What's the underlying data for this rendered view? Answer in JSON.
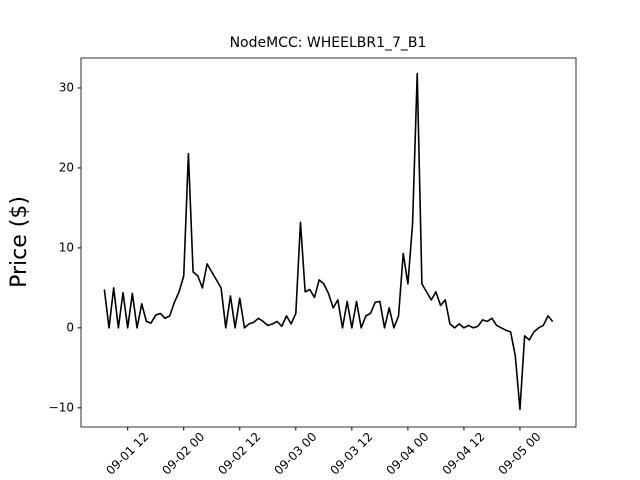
{
  "chart_data": {
    "type": "line",
    "title": "NodeMCC: WHEELBR1_7_B1",
    "y_label": "Price ($)",
    "x": [
      "09-01 07",
      "09-01 08",
      "09-01 09",
      "09-01 10",
      "09-01 11",
      "09-01 12",
      "09-01 13",
      "09-01 14",
      "09-01 15",
      "09-01 16",
      "09-01 17",
      "09-01 18",
      "09-01 19",
      "09-01 20",
      "09-01 21",
      "09-01 22",
      "09-01 23",
      "09-02 00",
      "09-02 01",
      "09-02 02",
      "09-02 03",
      "09-02 04",
      "09-02 05",
      "09-02 06",
      "09-02 07",
      "09-02 08",
      "09-02 09",
      "09-02 10",
      "09-02 11",
      "09-02 12",
      "09-02 13",
      "09-02 14",
      "09-02 15",
      "09-02 16",
      "09-02 17",
      "09-02 18",
      "09-02 19",
      "09-02 20",
      "09-02 21",
      "09-02 22",
      "09-02 23",
      "09-03 00",
      "09-03 01",
      "09-03 02",
      "09-03 03",
      "09-03 04",
      "09-03 05",
      "09-03 06",
      "09-03 07",
      "09-03 08",
      "09-03 09",
      "09-03 10",
      "09-03 11",
      "09-03 12",
      "09-03 13",
      "09-03 14",
      "09-03 15",
      "09-03 16",
      "09-03 17",
      "09-03 18",
      "09-03 19",
      "09-03 20",
      "09-03 21",
      "09-03 22",
      "09-03 23",
      "09-04 00",
      "09-04 01",
      "09-04 02",
      "09-04 03",
      "09-04 04",
      "09-04 05",
      "09-04 06",
      "09-04 07",
      "09-04 08",
      "09-04 09",
      "09-04 10",
      "09-04 11",
      "09-04 12",
      "09-04 13",
      "09-04 14",
      "09-04 15",
      "09-04 16",
      "09-04 17",
      "09-04 18",
      "09-04 19",
      "09-04 20",
      "09-04 21",
      "09-04 22",
      "09-04 23",
      "09-05 00",
      "09-05 01",
      "09-05 02",
      "09-05 03",
      "09-05 04",
      "09-05 05",
      "09-05 06",
      "09-05 07"
    ],
    "series": [
      {
        "color": "#000000",
        "values": [
          4.8,
          0,
          5,
          0,
          4.4,
          0,
          4.3,
          0,
          3.0,
          0.8,
          0.6,
          1.6,
          1.8,
          1.2,
          1.5,
          3.2,
          4.5,
          6.5,
          21.8,
          7,
          6.5,
          5,
          8,
          7,
          6,
          5,
          0,
          4,
          0,
          3.7,
          0,
          0.5,
          0.7,
          1.2,
          0.8,
          0.3,
          0.5,
          0.8,
          0.2,
          1.5,
          0.5,
          1.8,
          13.2,
          4.5,
          4.8,
          3.8,
          6,
          5.5,
          4.3,
          2.5,
          3.5,
          0,
          3.3,
          0,
          3.3,
          0,
          1.5,
          1.8,
          3.2,
          3.3,
          0,
          2.5,
          0,
          1.5,
          9.3,
          5.5,
          13,
          31.8,
          5.5,
          4.5,
          3.5,
          4.5,
          2.8,
          3.5,
          0.5,
          0,
          0.5,
          0,
          0.3,
          0,
          0.2,
          1,
          0.8,
          1.2,
          0.3,
          0,
          -0.3,
          -0.5,
          -3.5,
          -10.2,
          -1,
          -1.5,
          -0.5,
          0,
          0.3,
          1.5,
          0.8
        ]
      }
    ],
    "xlim": [
      "09-01 02",
      "09-05 12"
    ],
    "xticks": [
      "09-01 12",
      "09-02 00",
      "09-02 12",
      "09-03 00",
      "09-03 12",
      "09-04 00",
      "09-04 12",
      "09-05 00"
    ],
    "ylim": [
      -12.4,
      33.75
    ],
    "yticks": [
      {
        "value": -10,
        "label": "−10"
      },
      0,
      10,
      20,
      30
    ]
  }
}
